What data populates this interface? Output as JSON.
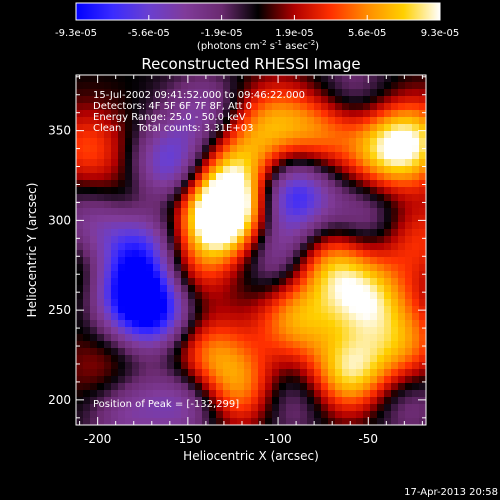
{
  "chart_data": {
    "type": "heatmap",
    "title": "Reconstructed RHESSI Image",
    "xlabel": "Heliocentric X (arcsec)",
    "ylabel": "Heliocentric Y (arcsec)",
    "xlim": [
      -212,
      -18
    ],
    "ylim": [
      186,
      381
    ],
    "xticks": [
      -200,
      -150,
      -100,
      -50
    ],
    "yticks": [
      200,
      250,
      300,
      350
    ],
    "colorbar": {
      "ticks": [
        "-9.3e-05",
        "-5.6e-05",
        "-1.9e-05",
        "1.9e-05",
        "5.6e-05",
        "9.3e-05"
      ],
      "unit_main": "(photons cm",
      "unit_exp1": "-2",
      "unit_mid": " s",
      "unit_exp2": "-1",
      "unit_end": " asec",
      "unit_exp3": "-2",
      "unit_close": ")",
      "min": -9.3e-05,
      "max": 9.3e-05,
      "colors": [
        "#0000ff",
        "#3a2bff",
        "#6a3fd0",
        "#803b9a",
        "#6a2a70",
        "#000000",
        "#b00000",
        "#ff3000",
        "#ff8c00",
        "#ffd000",
        "#ffffff"
      ]
    },
    "annotations": [
      "15-Jul-2002 09:41:52.000 to 09:46:22.000",
      "Detectors: 4F 5F 6F 7F 8F, Att 0",
      "Energy Range: 25.0 - 50.0 keV",
      "Clean     Total counts: 3.31E+03"
    ],
    "peak_label": "Position of Peak = [-132,299]",
    "peak": [
      -132,
      299
    ],
    "blobs": [
      {
        "x": -132,
        "y": 299,
        "v": 9.3e-05
      },
      {
        "x": -128,
        "y": 313,
        "v": 7.5e-05
      },
      {
        "x": -103,
        "y": 355,
        "v": 5e-05
      },
      {
        "x": -75,
        "y": 350,
        "v": 5e-05
      },
      {
        "x": -40,
        "y": 338,
        "v": 6e-05
      },
      {
        "x": -25,
        "y": 345,
        "v": 6e-05
      },
      {
        "x": -60,
        "y": 215,
        "v": 8e-05
      },
      {
        "x": -90,
        "y": 245,
        "v": 6e-05
      },
      {
        "x": -70,
        "y": 275,
        "v": 6.5e-05
      },
      {
        "x": -50,
        "y": 255,
        "v": 7e-05
      },
      {
        "x": -30,
        "y": 230,
        "v": 5e-05
      },
      {
        "x": -120,
        "y": 205,
        "v": 6e-05
      },
      {
        "x": -140,
        "y": 225,
        "v": 5.5e-05
      },
      {
        "x": -205,
        "y": 270,
        "v": 3e-05
      },
      {
        "x": -195,
        "y": 215,
        "v": 2.5e-05
      },
      {
        "x": -150,
        "y": 270,
        "v": 4e-05
      },
      {
        "x": -185,
        "y": 310,
        "v": 3e-05
      },
      {
        "x": -205,
        "y": 340,
        "v": 4e-05
      },
      {
        "x": -120,
        "y": 335,
        "v": 4.5e-05
      },
      {
        "x": -25,
        "y": 290,
        "v": 4e-05
      },
      {
        "x": -168,
        "y": 250,
        "v": -9e-05
      },
      {
        "x": -185,
        "y": 262,
        "v": -7e-05
      },
      {
        "x": -175,
        "y": 285,
        "v": -6e-05
      },
      {
        "x": -160,
        "y": 330,
        "v": -6.5e-05
      },
      {
        "x": -92,
        "y": 315,
        "v": -8e-05
      },
      {
        "x": -100,
        "y": 280,
        "v": -4.5e-05
      },
      {
        "x": -150,
        "y": 200,
        "v": -5e-05
      },
      {
        "x": -200,
        "y": 300,
        "v": -4.5e-05
      },
      {
        "x": -50,
        "y": 300,
        "v": -4e-05
      },
      {
        "x": -140,
        "y": 360,
        "v": -4e-05
      },
      {
        "x": -60,
        "y": 370,
        "v": -3e-05
      },
      {
        "x": -185,
        "y": 195,
        "v": -4e-05
      },
      {
        "x": -95,
        "y": 200,
        "v": -3.5e-05
      },
      {
        "x": -30,
        "y": 200,
        "v": -3e-05
      }
    ]
  },
  "footer": {
    "timestamp": "17-Apr-2013 20:58"
  }
}
